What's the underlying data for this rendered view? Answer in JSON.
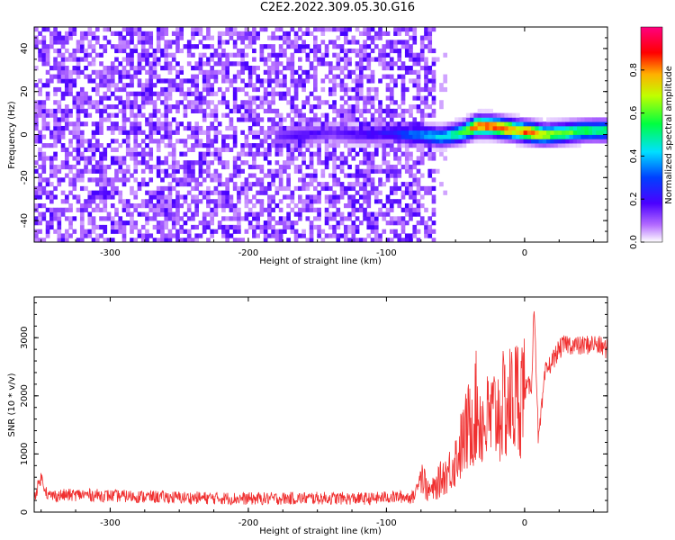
{
  "title": "C2E2.2022.309.05.30.G16",
  "chart_data": [
    {
      "type": "heatmap",
      "title": "C2E2.2022.309.05.30.G16",
      "xlabel": "Height of straight line (km)",
      "ylabel": "Frequency (Hz)",
      "xlim": [
        -355,
        60
      ],
      "ylim": [
        -50,
        50
      ],
      "x_ticks": [
        -300,
        -200,
        -100,
        0
      ],
      "y_ticks": [
        -40,
        -20,
        0,
        20,
        40
      ],
      "colorbar": {
        "label": "Normalized spectral amplitude",
        "range": [
          0,
          1
        ],
        "ticks": [
          0.0,
          0.2,
          0.4,
          0.6,
          0.8
        ],
        "colormap": [
          "#ffffff",
          "#7a00ff",
          "#0000ff",
          "#00ffff",
          "#00ff00",
          "#ffff00",
          "#ff0000",
          "#ff007f"
        ]
      },
      "signal_trace": {
        "x": [
          -180,
          -160,
          -140,
          -120,
          -95,
          -85,
          -75,
          -60,
          -45,
          -35,
          -25,
          -15,
          -5,
          5,
          15,
          30,
          45,
          60
        ],
        "frequency": [
          -1,
          0,
          1,
          0,
          1,
          0,
          0,
          -1,
          1,
          4,
          4,
          3,
          2,
          1,
          0,
          1,
          2,
          2
        ],
        "amplitude": [
          0.15,
          0.2,
          0.15,
          0.2,
          0.25,
          0.35,
          0.4,
          0.45,
          0.6,
          0.95,
          0.9,
          0.95,
          0.85,
          0.95,
          0.75,
          0.65,
          0.6,
          0.6
        ]
      },
      "noise_region": {
        "x_range": [
          -355,
          -65
        ],
        "level": "low (0.0-0.1)"
      }
    },
    {
      "type": "line",
      "xlabel": "Height of straight line (km)",
      "ylabel": "SNR (10 * v/v)",
      "xlim": [
        -355,
        60
      ],
      "ylim": [
        0,
        3700
      ],
      "x_ticks": [
        -300,
        -200,
        -100,
        0
      ],
      "y_ticks": [
        0,
        1000,
        2000,
        3000
      ],
      "color": "#f03030",
      "series": [
        {
          "x": [
            -355,
            -350,
            -345,
            -320,
            -300,
            -250,
            -200,
            -150,
            -110,
            -100,
            -80,
            -75,
            -70,
            -65,
            -60,
            -55,
            -50,
            -45,
            -40,
            -35,
            -30,
            -25,
            -20,
            -15,
            -10,
            -5,
            0,
            5,
            7,
            10,
            15,
            20,
            25,
            30,
            40,
            50,
            60
          ],
          "y": [
            250,
            600,
            280,
            300,
            280,
            250,
            230,
            240,
            230,
            260,
            260,
            700,
            350,
            400,
            600,
            700,
            900,
            1200,
            1500,
            1800,
            1500,
            1600,
            1700,
            1800,
            1900,
            2000,
            2100,
            2200,
            3600,
            1200,
            2400,
            2600,
            2800,
            2900,
            2850,
            2900,
            2800
          ]
        }
      ]
    }
  ]
}
